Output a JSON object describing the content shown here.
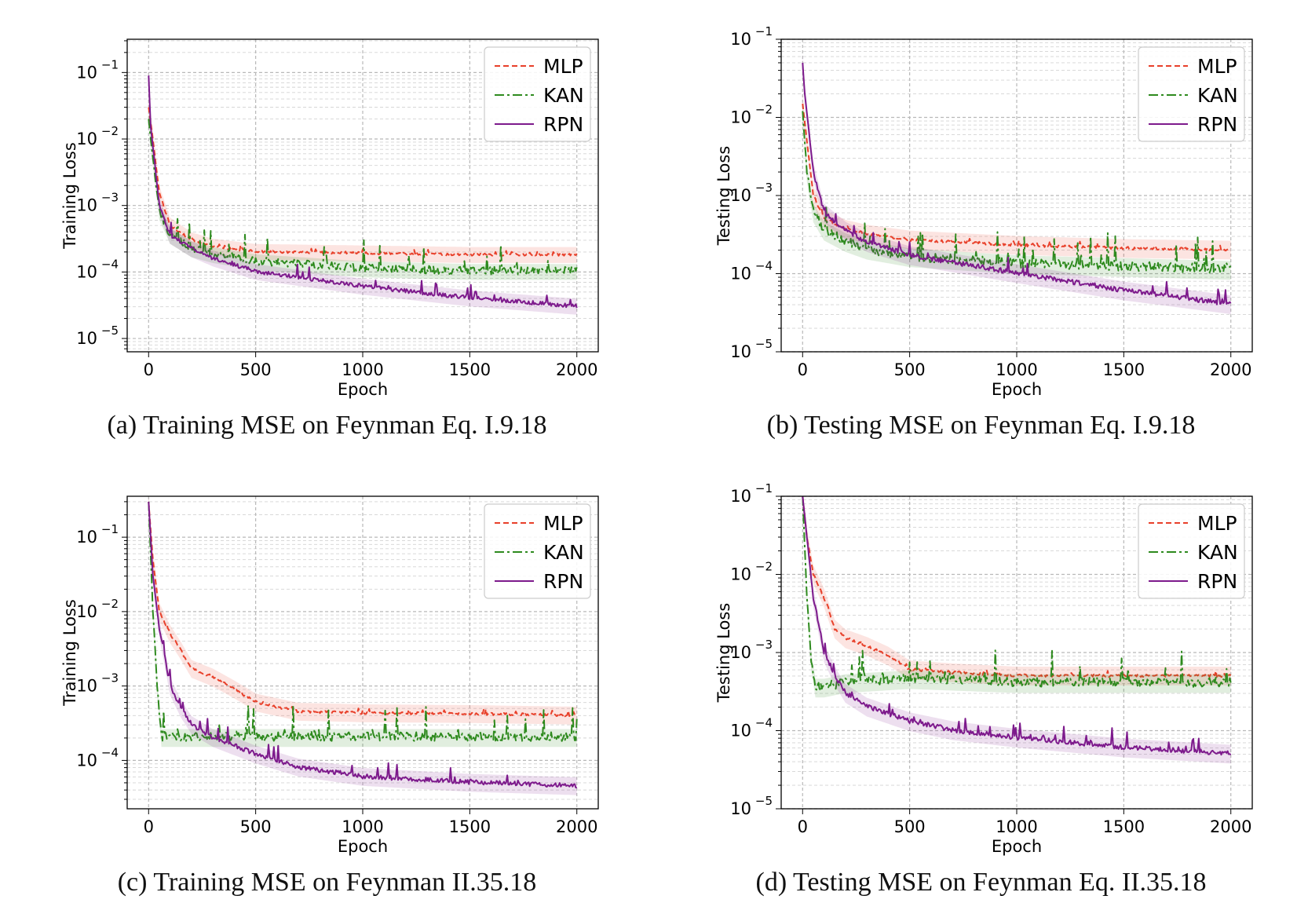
{
  "colors": {
    "MLP": "#e8402a",
    "KAN": "#2e8a1e",
    "RPN": "#7d1a8c"
  },
  "chart_data": [
    {
      "type": "line",
      "caption": "(a) Training MSE on Feynman Eq. I.9.18",
      "xlabel": "Epoch",
      "ylabel": "Training Loss",
      "y_scale": "log",
      "xlim": [
        -100,
        2100
      ],
      "ylim_exp": [
        -5.2,
        -0.5
      ],
      "xticks": [
        "0",
        "500",
        "1000",
        "1500",
        "2000"
      ],
      "yticks": [
        {
          "base": "10",
          "exp": "−1"
        },
        {
          "base": "10",
          "exp": "−2"
        },
        {
          "base": "10",
          "exp": "−3"
        },
        {
          "base": "10",
          "exp": "−4"
        },
        {
          "base": "10",
          "exp": "−5"
        }
      ],
      "legend": "top-right",
      "grid": true,
      "series": [
        {
          "name": "MLP",
          "x": [
            0,
            20,
            50,
            100,
            200,
            300,
            500,
            1000,
            1500,
            2000
          ],
          "y": [
            0.03,
            0.01,
            0.0015,
            0.0005,
            0.0003,
            0.00024,
            0.0002,
            0.00019,
            0.00018,
            0.00018
          ]
        },
        {
          "name": "KAN",
          "x": [
            0,
            20,
            50,
            100,
            200,
            300,
            500,
            1000,
            1500,
            2000
          ],
          "y": [
            0.02,
            0.005,
            0.0008,
            0.00035,
            0.00022,
            0.00018,
            0.00014,
            0.00011,
            0.0001,
            0.0001
          ]
        },
        {
          "name": "RPN",
          "x": [
            0,
            10,
            50,
            100,
            200,
            300,
            500,
            1000,
            1500,
            2000
          ],
          "y": [
            0.09,
            0.015,
            0.001,
            0.00035,
            0.00022,
            0.00016,
            0.0001,
            6e-05,
            4e-05,
            3e-05
          ]
        }
      ]
    },
    {
      "type": "line",
      "caption": "(b) Testing MSE on Feynman Eq. I.9.18",
      "xlabel": "Epoch",
      "ylabel": "Testing Loss",
      "y_scale": "log",
      "xlim": [
        -100,
        2100
      ],
      "ylim_exp": [
        -5,
        -1
      ],
      "xticks": [
        "0",
        "500",
        "1000",
        "1500",
        "2000"
      ],
      "yticks": [
        {
          "base": "10",
          "exp": "−1"
        },
        {
          "base": "10",
          "exp": "−2"
        },
        {
          "base": "10",
          "exp": "−3"
        },
        {
          "base": "10",
          "exp": "−4"
        },
        {
          "base": "10",
          "exp": "−5"
        }
      ],
      "legend": "top-right",
      "grid": true,
      "series": [
        {
          "name": "MLP",
          "x": [
            0,
            20,
            50,
            100,
            200,
            300,
            500,
            1000,
            1500,
            2000
          ],
          "y": [
            0.015,
            0.005,
            0.001,
            0.0005,
            0.00037,
            0.00032,
            0.00027,
            0.00023,
            0.00021,
            0.0002
          ]
        },
        {
          "name": "KAN",
          "x": [
            0,
            20,
            50,
            100,
            200,
            300,
            500,
            1000,
            1500,
            2000
          ],
          "y": [
            0.012,
            0.002,
            0.0006,
            0.00035,
            0.00025,
            0.0002,
            0.00016,
            0.00013,
            0.00012,
            0.00011
          ]
        },
        {
          "name": "RPN",
          "x": [
            0,
            10,
            50,
            100,
            200,
            300,
            500,
            1000,
            1500,
            2000
          ],
          "y": [
            0.05,
            0.02,
            0.002,
            0.0006,
            0.00035,
            0.00025,
            0.00017,
            0.0001,
            6e-05,
            4e-05
          ]
        }
      ]
    },
    {
      "type": "line",
      "caption": "(c) Training MSE on Feynman II.35.18",
      "xlabel": "Epoch",
      "ylabel": "Training Loss",
      "y_scale": "log",
      "xlim": [
        -100,
        2100
      ],
      "ylim_exp": [
        -4.65,
        -0.45
      ],
      "xticks": [
        "0",
        "500",
        "1000",
        "1500",
        "2000"
      ],
      "yticks": [
        {
          "base": "10",
          "exp": "−1"
        },
        {
          "base": "10",
          "exp": "−2"
        },
        {
          "base": "10",
          "exp": "−3"
        },
        {
          "base": "10",
          "exp": "−4"
        }
      ],
      "legend": "top-right",
      "grid": true,
      "series": [
        {
          "name": "MLP",
          "x": [
            0,
            20,
            50,
            100,
            150,
            200,
            300,
            400,
            500,
            700,
            1000,
            1500,
            2000
          ],
          "y": [
            0.3,
            0.05,
            0.01,
            0.005,
            0.003,
            0.0017,
            0.0013,
            0.0009,
            0.0006,
            0.00045,
            0.00043,
            0.00042,
            0.0004
          ]
        },
        {
          "name": "KAN",
          "x": [
            0,
            20,
            40,
            60,
            100,
            500,
            1000,
            1500,
            2000
          ],
          "y": [
            0.3,
            0.01,
            0.001,
            0.0002,
            0.0002,
            0.0002,
            0.0002,
            0.0002,
            0.0002
          ]
        },
        {
          "name": "RPN",
          "x": [
            0,
            20,
            50,
            100,
            150,
            200,
            300,
            500,
            700,
            1000,
            1500,
            2000
          ],
          "y": [
            0.3,
            0.03,
            0.006,
            0.001,
            0.0005,
            0.0003,
            0.0002,
            0.00012,
            8e-05,
            6e-05,
            5e-05,
            4.5e-05
          ]
        }
      ]
    },
    {
      "type": "line",
      "caption": "(d) Testing MSE on Feynman Eq. II.35.18",
      "xlabel": "Epoch",
      "ylabel": "Testing Loss",
      "y_scale": "log",
      "xlim": [
        -100,
        2100
      ],
      "ylim_exp": [
        -5,
        -1
      ],
      "xticks": [
        "0",
        "500",
        "1000",
        "1500",
        "2000"
      ],
      "yticks": [
        {
          "base": "10",
          "exp": "−1"
        },
        {
          "base": "10",
          "exp": "−2"
        },
        {
          "base": "10",
          "exp": "−3"
        },
        {
          "base": "10",
          "exp": "−4"
        },
        {
          "base": "10",
          "exp": "−5"
        }
      ],
      "legend": "top-right",
      "grid": true,
      "series": [
        {
          "name": "MLP",
          "x": [
            0,
            20,
            50,
            100,
            150,
            200,
            300,
            400,
            500,
            700,
            1000,
            1500,
            2000
          ],
          "y": [
            0.1,
            0.03,
            0.01,
            0.005,
            0.002,
            0.0015,
            0.0012,
            0.0009,
            0.0006,
            0.00055,
            0.0005,
            0.0005,
            0.0005
          ]
        },
        {
          "name": "KAN",
          "x": [
            0,
            20,
            40,
            60,
            100,
            200,
            500,
            1000,
            1500,
            2000
          ],
          "y": [
            0.1,
            0.005,
            0.0008,
            0.00035,
            0.00035,
            0.0004,
            0.00045,
            0.0004,
            0.0004,
            0.0004
          ]
        },
        {
          "name": "RPN",
          "x": [
            0,
            20,
            50,
            100,
            150,
            200,
            300,
            500,
            700,
            1000,
            1500,
            2000
          ],
          "y": [
            0.1,
            0.03,
            0.005,
            0.001,
            0.0005,
            0.0003,
            0.0002,
            0.00013,
            0.0001,
            8e-05,
            6e-05,
            5e-05
          ]
        }
      ]
    }
  ]
}
